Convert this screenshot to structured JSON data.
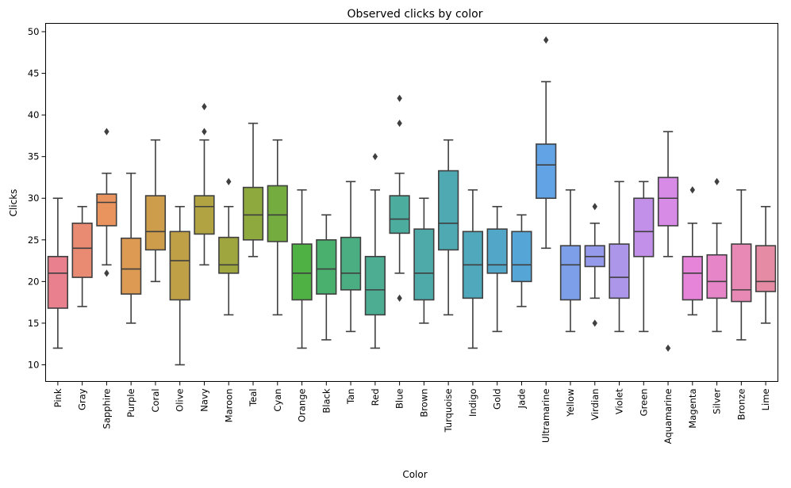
{
  "chart_data": {
    "type": "box",
    "title": "Observed clicks by color",
    "xlabel": "Color",
    "ylabel": "Clicks",
    "ylim": [
      8,
      51
    ],
    "yticks": [
      10,
      15,
      20,
      25,
      30,
      35,
      40,
      45,
      50
    ],
    "grid": false,
    "legend": "none",
    "categories": [
      "Pink",
      "Gray",
      "Sapphire",
      "Purple",
      "Coral",
      "Olive",
      "Navy",
      "Maroon",
      "Teal",
      "Cyan",
      "Orange",
      "Black",
      "Tan",
      "Red",
      "Blue",
      "Brown",
      "Turquoise",
      "Indigo",
      "Gold",
      "Jade",
      "Ultramarine",
      "Yellow",
      "Virdian",
      "Violet",
      "Green",
      "Aquamarine",
      "Magenta",
      "Silver",
      "Bronze",
      "Lime"
    ],
    "boxes": [
      {
        "category": "Pink",
        "color": "#e8808e",
        "whisker_low": 12,
        "q1": 16.8,
        "median": 21,
        "q3": 23,
        "whisker_high": 30,
        "outliers": []
      },
      {
        "category": "Gray",
        "color": "#e98a72",
        "whisker_low": 17,
        "q1": 20.5,
        "median": 24,
        "q3": 27,
        "whisker_high": 29,
        "outliers": []
      },
      {
        "category": "Sapphire",
        "color": "#e9935e",
        "whisker_low": 22,
        "q1": 26.7,
        "median": 29.5,
        "q3": 30.5,
        "whisker_high": 33,
        "outliers": [
          38,
          21
        ]
      },
      {
        "category": "Purple",
        "color": "#dc9a53",
        "whisker_low": 15,
        "q1": 18.5,
        "median": 21.5,
        "q3": 25.2,
        "whisker_high": 33,
        "outliers": []
      },
      {
        "category": "Coral",
        "color": "#cd9d4c",
        "whisker_low": 20,
        "q1": 23.8,
        "median": 26,
        "q3": 30.3,
        "whisker_high": 37,
        "outliers": []
      },
      {
        "category": "Olive",
        "color": "#c0a046",
        "whisker_low": 10,
        "q1": 17.8,
        "median": 22.5,
        "q3": 26,
        "whisker_high": 29,
        "outliers": []
      },
      {
        "category": "Navy",
        "color": "#b1a341",
        "whisker_low": 22,
        "q1": 25.7,
        "median": 29,
        "q3": 30.3,
        "whisker_high": 37,
        "outliers": [
          41,
          38
        ]
      },
      {
        "category": "Maroon",
        "color": "#a0a63f",
        "whisker_low": 16,
        "q1": 21,
        "median": 22,
        "q3": 25.3,
        "whisker_high": 29,
        "outliers": [
          32
        ]
      },
      {
        "category": "Teal",
        "color": "#8eaa3e",
        "whisker_low": 23,
        "q1": 25,
        "median": 28,
        "q3": 31.3,
        "whisker_high": 39,
        "outliers": []
      },
      {
        "category": "Cyan",
        "color": "#74ac3f",
        "whisker_low": 16,
        "q1": 24.8,
        "median": 28,
        "q3": 31.5,
        "whisker_high": 37,
        "outliers": []
      },
      {
        "category": "Orange",
        "color": "#4fb043",
        "whisker_low": 12,
        "q1": 17.8,
        "median": 21,
        "q3": 24.5,
        "whisker_high": 31,
        "outliers": []
      },
      {
        "category": "Black",
        "color": "#49b06d",
        "whisker_low": 13,
        "q1": 18.5,
        "median": 21.5,
        "q3": 25,
        "whisker_high": 28,
        "outliers": []
      },
      {
        "category": "Tan",
        "color": "#4bae83",
        "whisker_low": 14,
        "q1": 19,
        "median": 21,
        "q3": 25.3,
        "whisker_high": 32,
        "outliers": []
      },
      {
        "category": "Red",
        "color": "#4cad92",
        "whisker_low": 12,
        "q1": 16,
        "median": 19,
        "q3": 23,
        "whisker_high": 31,
        "outliers": [
          35
        ]
      },
      {
        "category": "Blue",
        "color": "#4cac9e",
        "whisker_low": 21,
        "q1": 25.8,
        "median": 27.5,
        "q3": 30.3,
        "whisker_high": 33,
        "outliers": [
          42,
          39,
          18
        ]
      },
      {
        "category": "Brown",
        "color": "#4eaaa8",
        "whisker_low": 15,
        "q1": 17.8,
        "median": 21,
        "q3": 26.3,
        "whisker_high": 30,
        "outliers": []
      },
      {
        "category": "Turquoise",
        "color": "#4fa9b2",
        "whisker_low": 16,
        "q1": 23.8,
        "median": 27,
        "q3": 33.3,
        "whisker_high": 37,
        "outliers": []
      },
      {
        "category": "Indigo",
        "color": "#50a8bc",
        "whisker_low": 12,
        "q1": 18,
        "median": 22,
        "q3": 26,
        "whisker_high": 31,
        "outliers": []
      },
      {
        "category": "Gold",
        "color": "#52a7c8",
        "whisker_low": 14,
        "q1": 21,
        "median": 22,
        "q3": 26.3,
        "whisker_high": 29,
        "outliers": []
      },
      {
        "category": "Jade",
        "color": "#55a5d6",
        "whisker_low": 17,
        "q1": 20,
        "median": 22,
        "q3": 26,
        "whisker_high": 28,
        "outliers": []
      },
      {
        "category": "Ultramarine",
        "color": "#62a3e6",
        "whisker_low": 24,
        "q1": 30,
        "median": 34,
        "q3": 36.5,
        "whisker_high": 44,
        "outliers": [
          49
        ]
      },
      {
        "category": "Yellow",
        "color": "#7d9fea",
        "whisker_low": 14,
        "q1": 17.8,
        "median": 22,
        "q3": 24.3,
        "whisker_high": 31,
        "outliers": []
      },
      {
        "category": "Virdian",
        "color": "#969aea",
        "whisker_low": 18,
        "q1": 21.8,
        "median": 23,
        "q3": 24.3,
        "whisker_high": 27,
        "outliers": [
          29,
          15
        ]
      },
      {
        "category": "Violet",
        "color": "#ab96ea",
        "whisker_low": 14,
        "q1": 18,
        "median": 20.5,
        "q3": 24.5,
        "whisker_high": 32,
        "outliers": []
      },
      {
        "category": "Green",
        "color": "#c290e9",
        "whisker_low": 14,
        "q1": 23,
        "median": 26,
        "q3": 30,
        "whisker_high": 32,
        "outliers": []
      },
      {
        "category": "Aquamarine",
        "color": "#d78be6",
        "whisker_low": 23,
        "q1": 26.7,
        "median": 30,
        "q3": 32.5,
        "whisker_high": 38,
        "outliers": [
          12
        ]
      },
      {
        "category": "Magenta",
        "color": "#e584d9",
        "whisker_low": 16,
        "q1": 17.8,
        "median": 21,
        "q3": 23,
        "whisker_high": 27,
        "outliers": [
          31
        ]
      },
      {
        "category": "Silver",
        "color": "#e685c7",
        "whisker_low": 14,
        "q1": 18,
        "median": 20,
        "q3": 23.2,
        "whisker_high": 27,
        "outliers": [
          32
        ]
      },
      {
        "category": "Bronze",
        "color": "#e788b5",
        "whisker_low": 13,
        "q1": 17.6,
        "median": 19,
        "q3": 24.5,
        "whisker_high": 31,
        "outliers": []
      },
      {
        "category": "Lime",
        "color": "#e68ba4",
        "whisker_low": 15,
        "q1": 18.8,
        "median": 20,
        "q3": 24.3,
        "whisker_high": 29,
        "outliers": []
      }
    ]
  }
}
